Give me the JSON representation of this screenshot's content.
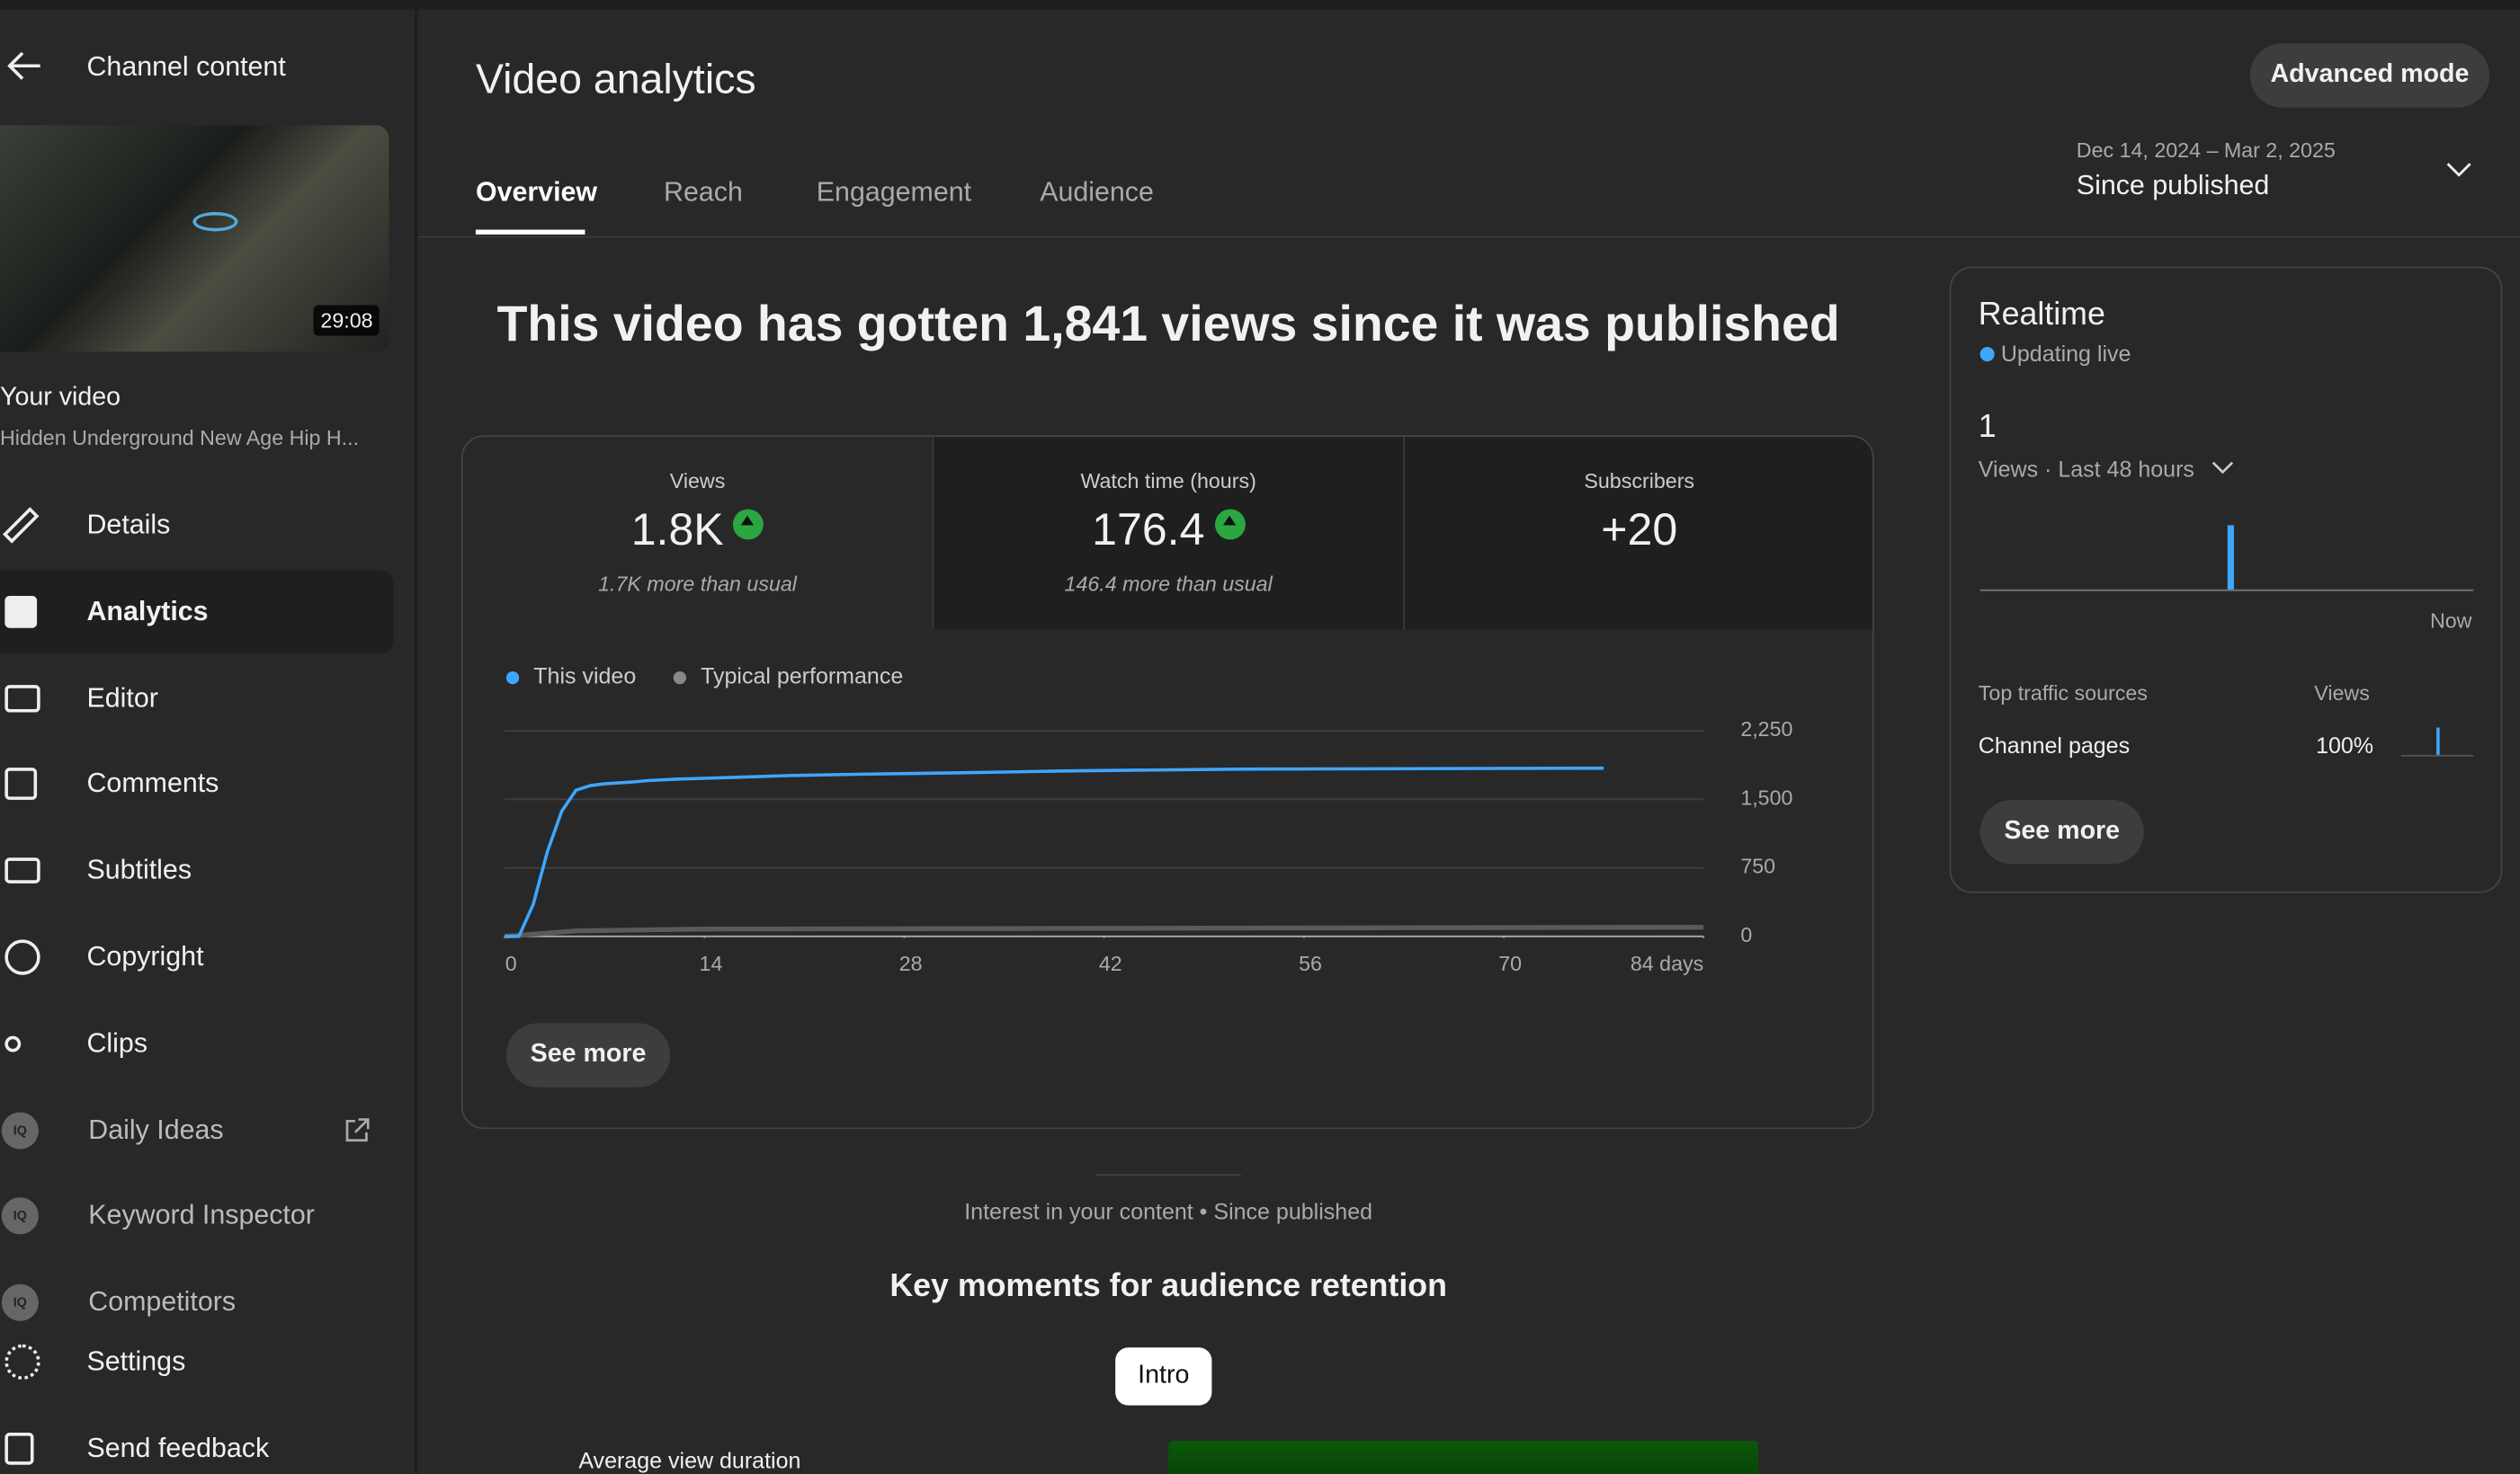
{
  "sidebar": {
    "back_label": "Channel content",
    "thumbnail_duration": "29:08",
    "your_video": "Your video",
    "video_title": "Hidden Underground New Age Hip H...",
    "iq_badge": "IQ",
    "nav": [
      "Details",
      "Analytics",
      "Editor",
      "Comments",
      "Subtitles",
      "Copyright",
      "Clips",
      "Daily Ideas",
      "Keyword Inspector",
      "Competitors",
      "Settings",
      "Send feedback"
    ]
  },
  "header": {
    "title": "Video analytics",
    "advanced_mode": "Advanced mode",
    "tabs": [
      "Overview",
      "Reach",
      "Engagement",
      "Audience"
    ],
    "date_range": "Dec 14, 2024 – Mar 2, 2025",
    "period": "Since published"
  },
  "headline": "This video has gotten 1,841 views since it was published",
  "metrics": [
    {
      "label": "Views",
      "value": "1.8K",
      "note": "1.7K more than usual"
    },
    {
      "label": "Watch time (hours)",
      "value": "176.4",
      "note": "146.4 more than usual"
    },
    {
      "label": "Subscribers",
      "value": "+20"
    }
  ],
  "chart": {
    "type": "line",
    "series": [
      {
        "name": "This video",
        "color": "#3ea6ff",
        "x": [
          0,
          1,
          2,
          3,
          4,
          5,
          6,
          7,
          9,
          10,
          12,
          16,
          20,
          25,
          32,
          39,
          51,
          77
        ],
        "values": [
          0,
          0,
          350,
          930,
          1370,
          1600,
          1650,
          1670,
          1690,
          1705,
          1720,
          1740,
          1760,
          1775,
          1790,
          1810,
          1830,
          1841
        ]
      },
      {
        "name": "Typical performance",
        "color": "#5a5a5a",
        "x": [
          0,
          5,
          14,
          84
        ],
        "values": [
          0,
          60,
          80,
          100
        ]
      }
    ],
    "xlim": [
      0,
      84
    ],
    "xticks": [
      0,
      14,
      28,
      42,
      56,
      70,
      {
        "value": 84,
        "label": "84 days"
      }
    ],
    "ylim": [
      0,
      2250
    ],
    "yticks": [
      0,
      750,
      {
        "value": 1500,
        "label": "1,500"
      },
      {
        "value": 2250,
        "label": "2,250"
      }
    ],
    "grid": true
  },
  "chart_button": "See more",
  "realtime": {
    "title": "Realtime",
    "status": "Updating live",
    "count": "1",
    "count_label": "Views · Last 48 hours",
    "now_label": "Now",
    "traffic_header": "Top traffic sources",
    "views_header": "Views",
    "source": "Channel pages",
    "source_share": "100%",
    "button": "See more"
  },
  "retention": {
    "caption": "Interest in your content • Since published",
    "title": "Key moments for audience retention",
    "chip": "Intro",
    "avg_label": "Average view duration"
  }
}
